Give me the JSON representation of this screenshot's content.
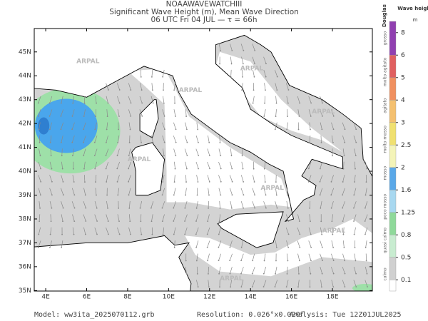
{
  "header": {
    "model_name": "NOAAWAVEWATCHIII",
    "title": "Significant Wave Height (m), Mean Wave Direction",
    "subtitle": "06 UTC Fri 04 JUL  —  τ = 66h"
  },
  "map": {
    "lon_range": [
      3.44,
      19.95
    ],
    "lat_range": [
      34.98,
      45.98
    ],
    "lon_ticks": [
      {
        "value": 4,
        "label": "4E"
      },
      {
        "value": 6,
        "label": "6E"
      },
      {
        "value": 8,
        "label": "8E"
      },
      {
        "value": 10,
        "label": "10E"
      },
      {
        "value": 12,
        "label": "12E"
      },
      {
        "value": 14,
        "label": "14E"
      },
      {
        "value": 16,
        "label": "16E"
      },
      {
        "value": 18,
        "label": "18E"
      }
    ],
    "lat_ticks": [
      {
        "value": 35,
        "label": "35N"
      },
      {
        "value": 36,
        "label": "36N"
      },
      {
        "value": 37,
        "label": "37N"
      },
      {
        "value": 38,
        "label": "38N"
      },
      {
        "value": 39,
        "label": "39N"
      },
      {
        "value": 40,
        "label": "40N"
      },
      {
        "value": 41,
        "label": "41N"
      },
      {
        "value": 42,
        "label": "42N"
      },
      {
        "value": 43,
        "label": "43N"
      },
      {
        "value": 44,
        "label": "44N"
      },
      {
        "value": 45,
        "label": "45N"
      }
    ],
    "watermark": "ARPAL"
  },
  "colorbar": {
    "title": "Wave height",
    "unit": "m",
    "scale_name": "Douglas",
    "levels": [
      0.1,
      0.5,
      0.8,
      1.25,
      1.6,
      2,
      2.5,
      3,
      4,
      5,
      6,
      8
    ],
    "colors": [
      "#ffffff",
      "#d0d0d0",
      "#c8ecd0",
      "#8fd99a",
      "#a8d8f0",
      "#5aa8e8",
      "#f4f4b8",
      "#f0e070",
      "#f4c070",
      "#f09060",
      "#e06060",
      "#9040b0"
    ],
    "sea_states": [
      "calmo",
      "quasi calmo",
      "poco mosso",
      "mosso",
      "molto mosso",
      "agitato",
      "molto agitato",
      "grosso"
    ]
  },
  "footer": {
    "model": "Model: ww3ita_2025070112.grb",
    "resolution": "Resolution: 0.026°x0.020°",
    "analysis": "Analysis: Tue 12Z01JUL2025"
  }
}
